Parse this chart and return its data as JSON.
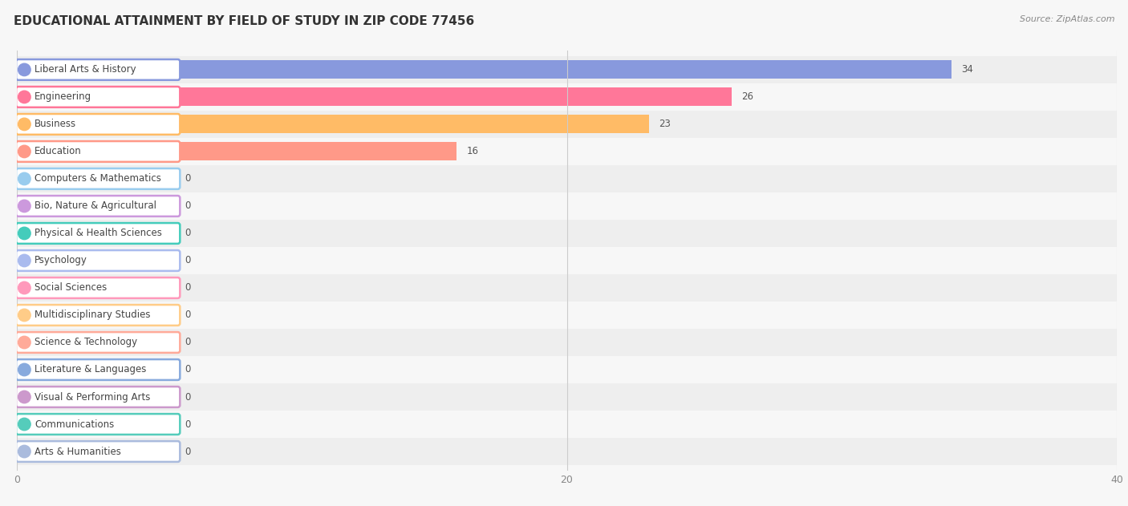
{
  "title": "EDUCATIONAL ATTAINMENT BY FIELD OF STUDY IN ZIP CODE 77456",
  "source": "Source: ZipAtlas.com",
  "categories": [
    "Liberal Arts & History",
    "Engineering",
    "Business",
    "Education",
    "Computers & Mathematics",
    "Bio, Nature & Agricultural",
    "Physical & Health Sciences",
    "Psychology",
    "Social Sciences",
    "Multidisciplinary Studies",
    "Science & Technology",
    "Literature & Languages",
    "Visual & Performing Arts",
    "Communications",
    "Arts & Humanities"
  ],
  "values": [
    34,
    26,
    23,
    16,
    0,
    0,
    0,
    0,
    0,
    0,
    0,
    0,
    0,
    0,
    0
  ],
  "bar_colors": [
    "#8899dd",
    "#ff7799",
    "#ffbb66",
    "#ff9988",
    "#99ccee",
    "#cc99dd",
    "#44ccbb",
    "#aabbee",
    "#ff99bb",
    "#ffcc88",
    "#ffaa99",
    "#88aadd",
    "#cc99cc",
    "#55ccbb",
    "#aabbdd"
  ],
  "xlim": [
    0,
    40
  ],
  "xticks": [
    0,
    20,
    40
  ],
  "background_color": "#f7f7f7",
  "row_bg_even": "#eeeeee",
  "row_bg_odd": "#f7f7f7",
  "title_fontsize": 11,
  "label_fontsize": 8.5,
  "value_fontsize": 8.5
}
